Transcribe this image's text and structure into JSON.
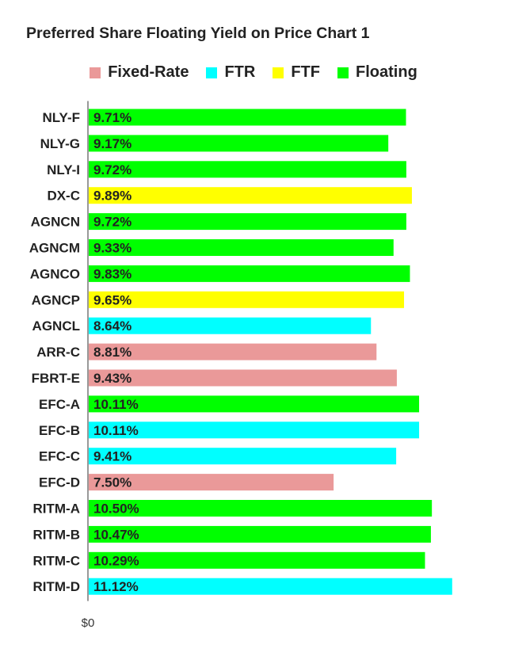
{
  "chart_data": {
    "type": "bar",
    "orientation": "horizontal",
    "title": "Preferred Share Floating Yield on Price Chart 1",
    "legend": [
      {
        "name": "Fixed-Rate",
        "color": "#ea9999"
      },
      {
        "name": "FTR",
        "color": "#00ffff"
      },
      {
        "name": "FTF",
        "color": "#ffff00"
      },
      {
        "name": "Floating",
        "color": "#00ff00"
      }
    ],
    "legend_position": "top",
    "categories": [
      "NLY-F",
      "NLY-G",
      "NLY-I",
      "DX-C",
      "AGNCN",
      "AGNCM",
      "AGNCO",
      "AGNCP",
      "AGNCL",
      "ARR-C",
      "FBRT-E",
      "EFC-A",
      "EFC-B",
      "EFC-C",
      "EFC-D",
      "RITM-A",
      "RITM-B",
      "RITM-C",
      "RITM-D"
    ],
    "values": [
      9.71,
      9.17,
      9.72,
      9.89,
      9.72,
      9.33,
      9.83,
      9.65,
      8.64,
      8.81,
      9.43,
      10.11,
      10.11,
      9.41,
      7.5,
      10.5,
      10.47,
      10.29,
      11.12
    ],
    "value_labels": [
      "9.71%",
      "9.17%",
      "9.72%",
      "9.89%",
      "9.72%",
      "9.33%",
      "9.83%",
      "9.65%",
      "8.64%",
      "8.81%",
      "9.43%",
      "10.11%",
      "10.11%",
      "9.41%",
      "7.50%",
      "10.50%",
      "10.47%",
      "10.29%",
      "11.12%"
    ],
    "bar_types": [
      "Floating",
      "Floating",
      "Floating",
      "FTF",
      "Floating",
      "Floating",
      "Floating",
      "FTF",
      "FTR",
      "Fixed-Rate",
      "Fixed-Rate",
      "Floating",
      "FTR",
      "FTR",
      "Fixed-Rate",
      "Floating",
      "Floating",
      "Floating",
      "FTR"
    ],
    "x_tick_labels": [
      "$0"
    ],
    "xlim": [
      0,
      12.6
    ],
    "grid": false
  }
}
